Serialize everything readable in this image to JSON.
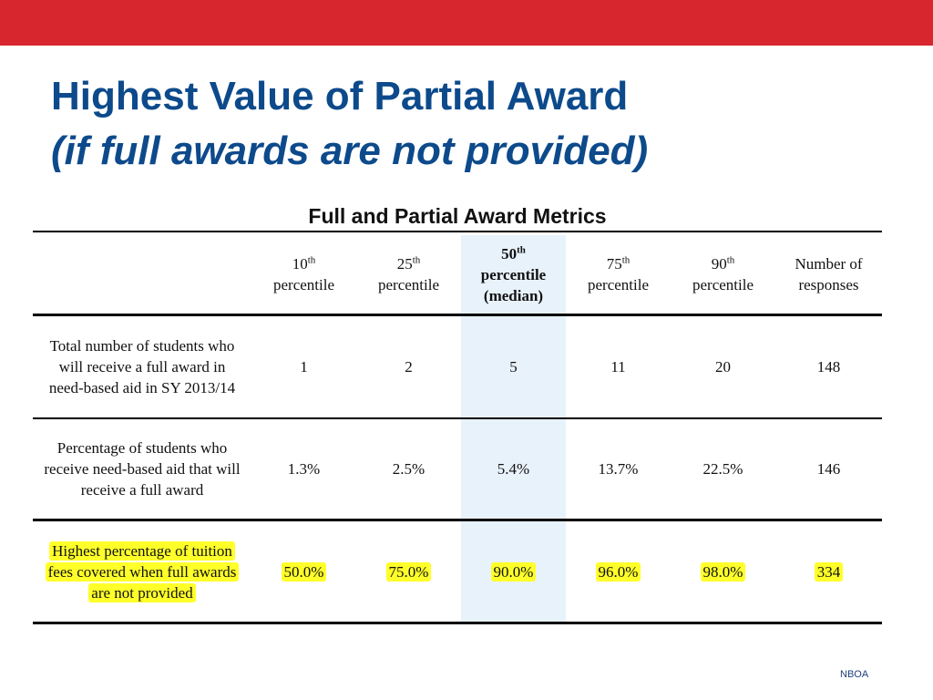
{
  "slide": {
    "title_line1": "Highest Value of Partial Award",
    "title_line2": "(if full awards are not provided)",
    "footer": "NBOA"
  },
  "table": {
    "caption": "Full and Partial Award Metrics",
    "columns": [
      {
        "ord": "10",
        "sup": "th",
        "label": "percentile"
      },
      {
        "ord": "25",
        "sup": "th",
        "label": "percentile"
      },
      {
        "ord": "50",
        "sup": "th",
        "label": "percentile",
        "label2": "(median)"
      },
      {
        "ord": "75",
        "sup": "th",
        "label": "percentile"
      },
      {
        "ord": "90",
        "sup": "th",
        "label": "percentile"
      },
      {
        "label": "Number of",
        "label2": "responses"
      }
    ],
    "rows": [
      {
        "label": "Total number of students who will receive a full award in need-based aid in SY 2013/14",
        "values": [
          "1",
          "2",
          "5",
          "11",
          "20",
          "148"
        ]
      },
      {
        "label": "Percentage of students who receive need-based aid that will receive a full award",
        "values": [
          "1.3%",
          "2.5%",
          "5.4%",
          "13.7%",
          "22.5%",
          "146"
        ]
      },
      {
        "label": "Highest percentage of tuition fees covered when full awards are not provided",
        "values": [
          "50.0%",
          "75.0%",
          "90.0%",
          "96.0%",
          "98.0%",
          "334"
        ],
        "highlighted": true
      }
    ]
  },
  "colors": {
    "top_bar": "#d7262e",
    "title": "#0d4a8b",
    "median_column_shade": "#e8f2fb",
    "highlight": "#ffff2a"
  }
}
